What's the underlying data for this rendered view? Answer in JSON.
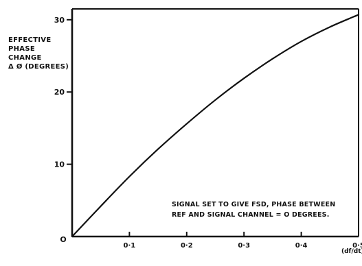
{
  "chart_data": {
    "type": "line",
    "title": "",
    "ylabel_lines": [
      "EFFECTIVE",
      "PHASE",
      "CHANGE",
      "Δ Ø (DEGREES)"
    ],
    "xlabel": "(df/dt)/f",
    "xlim": [
      0,
      0.5
    ],
    "ylim": [
      0,
      31.5
    ],
    "x_ticks": [
      0.1,
      0.2,
      0.3,
      0.4,
      0.5
    ],
    "x_tick_labels": [
      "0·1",
      "0·2",
      "0·3",
      "0·4",
      "0·5"
    ],
    "y_ticks": [
      10,
      20,
      30
    ],
    "y_tick_labels": [
      "10",
      "20",
      "30"
    ],
    "origin_label": "O",
    "grid": false,
    "annotation_lines": [
      "SIGNAL SET TO GIVE FSD, PHASE BETWEEN",
      "REF AND SIGNAL CHANNEL = O DEGREES."
    ],
    "series": [
      {
        "x": [
          0,
          0.05,
          0.1,
          0.15,
          0.2,
          0.25,
          0.3,
          0.35,
          0.4,
          0.45,
          0.5
        ],
        "values": [
          0,
          4.2,
          8.3,
          12.1,
          15.6,
          18.9,
          21.9,
          24.6,
          27.0,
          29.0,
          30.7
        ]
      }
    ]
  }
}
